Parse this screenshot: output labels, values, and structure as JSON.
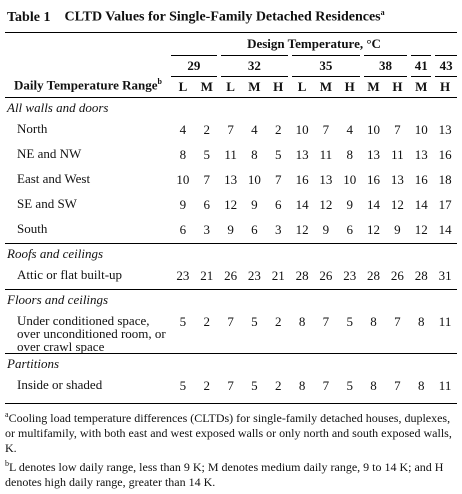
{
  "title": {
    "label": "Table 1",
    "text": "CLTD Values for Single-Family Detached Residences",
    "note": "a"
  },
  "header": {
    "row_label": "Daily Temperature Range",
    "row_label_note": "b",
    "design": "Design Temperature, °C",
    "groups": [
      {
        "temp": 29,
        "ranges": [
          "L",
          "M"
        ]
      },
      {
        "temp": 32,
        "ranges": [
          "L",
          "M",
          "H"
        ]
      },
      {
        "temp": 35,
        "ranges": [
          "L",
          "M",
          "H"
        ]
      },
      {
        "temp": 38,
        "ranges": [
          "M",
          "H"
        ]
      },
      {
        "temp": 41,
        "ranges": [
          "M"
        ]
      },
      {
        "temp": 43,
        "ranges": [
          "H"
        ]
      }
    ]
  },
  "sections": [
    {
      "name": "All walls and doors",
      "rows": [
        {
          "label": "North",
          "values": [
            4,
            2,
            7,
            4,
            2,
            10,
            7,
            4,
            10,
            7,
            10,
            13
          ]
        },
        {
          "label": "NE and NW",
          "values": [
            8,
            5,
            11,
            8,
            5,
            13,
            11,
            8,
            13,
            11,
            13,
            16
          ]
        },
        {
          "label": "East and West",
          "values": [
            10,
            7,
            13,
            10,
            7,
            16,
            13,
            10,
            16,
            13,
            16,
            18
          ]
        },
        {
          "label": "SE and SW",
          "values": [
            9,
            6,
            12,
            9,
            6,
            14,
            12,
            9,
            14,
            12,
            14,
            17
          ]
        },
        {
          "label": "South",
          "values": [
            6,
            3,
            9,
            6,
            3,
            12,
            9,
            6,
            12,
            9,
            12,
            14
          ]
        }
      ]
    },
    {
      "name": "Roofs and ceilings",
      "rows": [
        {
          "label": "Attic or flat built-up",
          "values": [
            23,
            21,
            26,
            23,
            21,
            28,
            26,
            23,
            28,
            26,
            28,
            31
          ]
        }
      ]
    },
    {
      "name": "Floors and ceilings",
      "rows": [
        {
          "label": "Under conditioned space, over unconditioned room, or over crawl space",
          "values": [
            5,
            2,
            7,
            5,
            2,
            8,
            7,
            5,
            8,
            7,
            8,
            11
          ]
        }
      ]
    },
    {
      "name": "Partitions",
      "rows": [
        {
          "label": "Inside or shaded",
          "values": [
            5,
            2,
            7,
            5,
            2,
            8,
            7,
            5,
            8,
            7,
            8,
            11
          ]
        }
      ]
    }
  ],
  "footnotes": [
    {
      "mark": "a",
      "text": "Cooling load temperature differences (CLTDs) for single-family detached houses, duplexes, or multifamily, with both east and west exposed walls or only north and south exposed walls, K."
    },
    {
      "mark": "b",
      "text": "L denotes low daily range, less than 9 K; M denotes medium daily range, 9 to 14 K; and H denotes high daily range, greater than 14 K."
    }
  ]
}
